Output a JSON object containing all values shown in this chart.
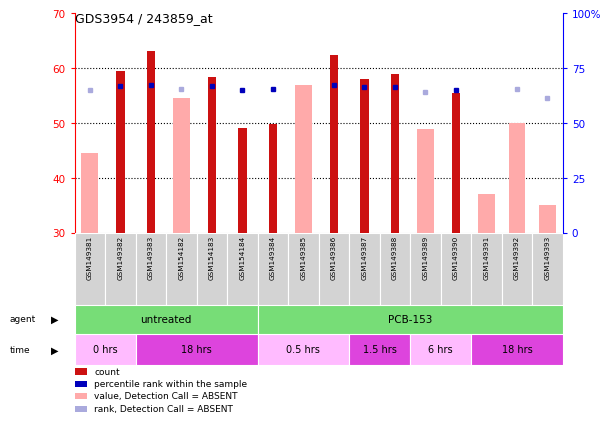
{
  "title": "GDS3954 / 243859_at",
  "samples": [
    "GSM149381",
    "GSM149382",
    "GSM149383",
    "GSM154182",
    "GSM154183",
    "GSM154184",
    "GSM149384",
    "GSM149385",
    "GSM149386",
    "GSM149387",
    "GSM149388",
    "GSM149389",
    "GSM149390",
    "GSM149391",
    "GSM149392",
    "GSM149393"
  ],
  "count_values": [
    null,
    59.5,
    63.2,
    null,
    58.5,
    49.2,
    49.8,
    null,
    62.5,
    58.0,
    59.0,
    null,
    55.5,
    null,
    null,
    null
  ],
  "value_absent": [
    44.5,
    null,
    null,
    54.5,
    null,
    null,
    null,
    57.0,
    null,
    null,
    null,
    49.0,
    null,
    37.0,
    50.0,
    35.0
  ],
  "rank_present_pct": [
    null,
    67.0,
    67.5,
    null,
    67.0,
    65.0,
    65.5,
    null,
    67.5,
    66.5,
    66.5,
    null,
    65.0,
    null,
    null,
    null
  ],
  "rank_absent_pct": [
    65.0,
    null,
    null,
    65.5,
    null,
    null,
    null,
    null,
    null,
    null,
    null,
    64.0,
    null,
    null,
    65.5,
    61.5
  ],
  "ylim": [
    30,
    70
  ],
  "yticks": [
    30,
    40,
    50,
    60,
    70
  ],
  "y2lim": [
    0,
    100
  ],
  "y2ticks": [
    0,
    25,
    50,
    75,
    100
  ],
  "time_groups": [
    {
      "label": "0 hrs",
      "start": 0,
      "end": 2,
      "color": "#ffaaff"
    },
    {
      "label": "18 hrs",
      "start": 2,
      "end": 6,
      "color": "#dd44dd"
    },
    {
      "label": "0.5 hrs",
      "start": 6,
      "end": 9,
      "color": "#ffaaff"
    },
    {
      "label": "1.5 hrs",
      "start": 9,
      "end": 11,
      "color": "#dd44dd"
    },
    {
      "label": "6 hrs",
      "start": 11,
      "end": 13,
      "color": "#ffaaff"
    },
    {
      "label": "18 hrs",
      "start": 13,
      "end": 16,
      "color": "#dd44dd"
    }
  ],
  "bar_color_present": "#cc1111",
  "bar_color_absent": "#ffaaaa",
  "rank_color_present": "#0000bb",
  "rank_color_absent": "#aaaadd",
  "background_color": "#ffffff",
  "legend_items": [
    {
      "label": "count",
      "color": "#cc1111",
      "ltype": "solid"
    },
    {
      "label": "percentile rank within the sample",
      "color": "#0000bb",
      "ltype": "solid"
    },
    {
      "label": "value, Detection Call = ABSENT",
      "color": "#ffaaaa",
      "ltype": "solid"
    },
    {
      "label": "rank, Detection Call = ABSENT",
      "color": "#aaaadd",
      "ltype": "solid"
    }
  ]
}
